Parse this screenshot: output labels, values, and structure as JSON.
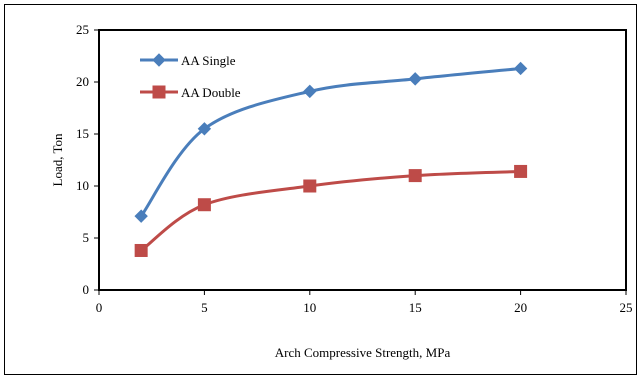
{
  "chart_data": {
    "type": "line",
    "title": "",
    "xlabel": "Arch Compressive Strength, MPa",
    "ylabel": "Load, Ton",
    "xlim": [
      0,
      25
    ],
    "ylim": [
      0,
      25
    ],
    "xticks": [
      0,
      5,
      10,
      15,
      20,
      25
    ],
    "yticks": [
      0,
      5,
      10,
      15,
      20,
      25
    ],
    "grid": false,
    "legend_position": "top-left",
    "series": [
      {
        "name": "AA Single",
        "color": "#4A7EBB",
        "marker": "diamond",
        "x": [
          2,
          5,
          10,
          15,
          20
        ],
        "y": [
          7.1,
          15.5,
          19.1,
          20.3,
          21.3
        ]
      },
      {
        "name": "AA Double",
        "color": "#BE4B48",
        "marker": "square",
        "x": [
          2,
          5,
          10,
          15,
          20
        ],
        "y": [
          3.8,
          8.2,
          10.0,
          11.0,
          11.4
        ]
      }
    ]
  }
}
